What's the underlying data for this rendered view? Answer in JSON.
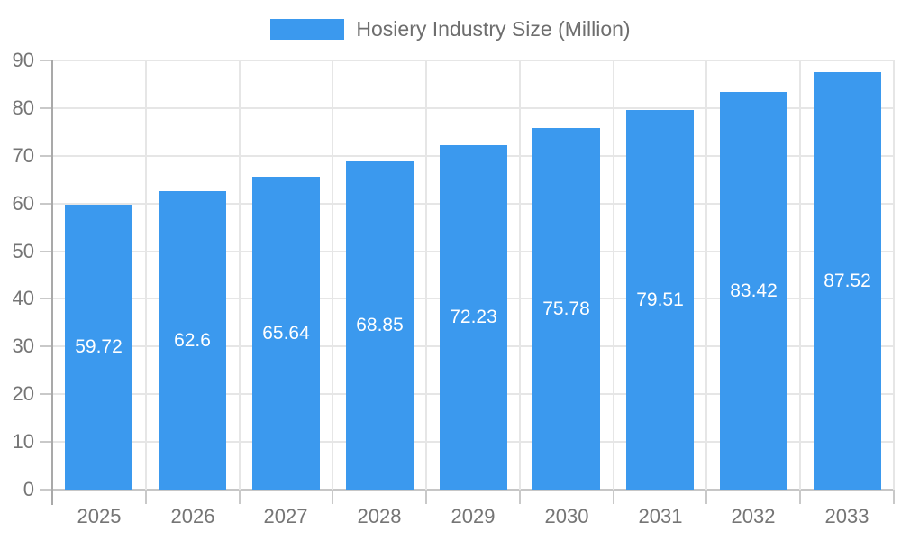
{
  "chart_data": {
    "type": "bar",
    "title": "",
    "legend": {
      "label": "Hosiery Industry Size (Million)",
      "position": "top"
    },
    "categories": [
      "2025",
      "2026",
      "2027",
      "2028",
      "2029",
      "2030",
      "2031",
      "2032",
      "2033"
    ],
    "values": [
      59.72,
      62.6,
      65.64,
      68.85,
      72.23,
      75.78,
      79.51,
      83.42,
      87.52
    ],
    "value_labels": [
      "59.72",
      "62.6",
      "65.64",
      "68.85",
      "72.23",
      "75.78",
      "79.51",
      "83.42",
      "87.52"
    ],
    "xlabel": "",
    "ylabel": "",
    "ylim": [
      0,
      90
    ],
    "yticks": [
      0,
      10,
      20,
      30,
      40,
      50,
      60,
      70,
      80,
      90
    ],
    "grid": "both",
    "layout": {
      "bar_fraction": 0.72,
      "legend_position": "top-center"
    },
    "colors": {
      "bar": "#3B99EE",
      "bar_label": "#FFFFFF",
      "axis_text": "#757575",
      "legend_text": "#6E6E6E",
      "gridline": "#E6E6E6",
      "baseline": "#C6C6C6",
      "axis_line": "#A9A9A9",
      "tick": "#C9C9C9"
    }
  }
}
